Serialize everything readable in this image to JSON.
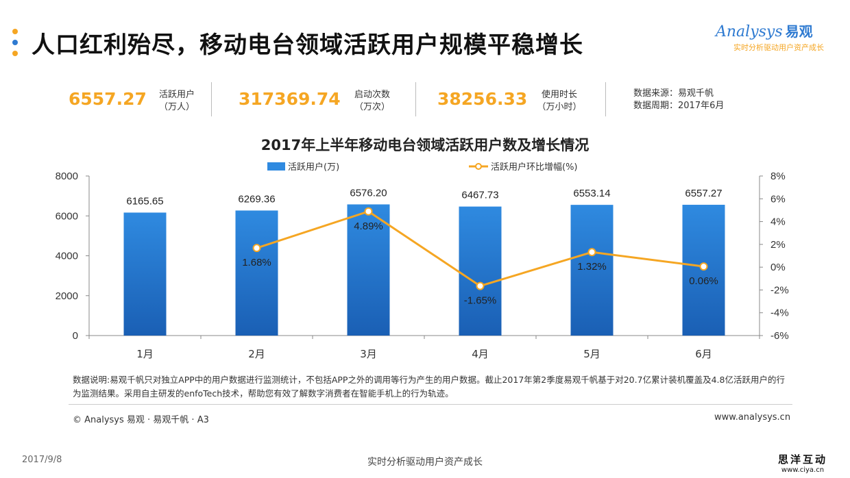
{
  "title": "人口红利殆尽，移动电台领域活跃用户规模平稳增长",
  "logo": {
    "brand": "nalysys",
    "brand_cn": "易观",
    "tagline": "实时分析驱动用户资产成长"
  },
  "kpis": [
    {
      "value": "6557.27",
      "label_line1": "活跃用户",
      "label_line2": "（万人）"
    },
    {
      "value": "317369.74",
      "label_line1": "启动次数",
      "label_line2": "（万次）"
    },
    {
      "value": "38256.33",
      "label_line1": "使用时长",
      "label_line2": "（万小时）"
    }
  ],
  "source": {
    "line1": "数据来源：易观千帆",
    "line2": "数据周期：2017年6月"
  },
  "chart_data": {
    "type": "bar",
    "title": "2017年上半年移动电台领域活跃用户数及增长情况",
    "categories": [
      "1月",
      "2月",
      "3月",
      "4月",
      "5月",
      "6月"
    ],
    "series": [
      {
        "name": "活跃用户(万)",
        "type": "bar",
        "axis": "left",
        "values": [
          6165.65,
          6269.36,
          6576.2,
          6467.73,
          6553.14,
          6557.27
        ],
        "labels": [
          "6165.65",
          "6269.36",
          "6576.20",
          "6467.73",
          "6553.14",
          "6557.27"
        ]
      },
      {
        "name": "活跃用户环比增幅(%)",
        "type": "line",
        "axis": "right",
        "values": [
          null,
          1.68,
          4.89,
          -1.65,
          1.32,
          0.06
        ],
        "labels": [
          "",
          "1.68%",
          "4.89%",
          "-1.65%",
          "1.32%",
          "0.06%"
        ]
      }
    ],
    "left_axis": {
      "ylim": [
        0,
        8000
      ],
      "ticks": [
        "0",
        "2000",
        "4000",
        "6000",
        "8000"
      ]
    },
    "right_axis": {
      "ylim": [
        -6,
        8
      ],
      "ticks": [
        "-6%",
        "-4%",
        "-2%",
        "0%",
        "2%",
        "4%",
        "6%",
        "8%"
      ]
    },
    "legend_position": "top",
    "grid": false,
    "colors": {
      "bar_top": "#2f8ae0",
      "bar_bottom": "#1a5fb4",
      "line": "#f5a623"
    }
  },
  "note": "数据说明:易观千帆只对独立APP中的用户数据进行监测统计，不包括APP之外的调用等行为产生的用户数据。截止2017年第2季度易观千帆基于对20.7亿累计装机覆盖及4.8亿活跃用户的行为监测结果。采用自主研发的enfoTech技术，帮助您有效了解数字消费者在智能手机上的行为轨迹。",
  "footer": {
    "copyright": "© Analysys 易观 · 易观千帆 · A3",
    "website": "www.analysys.cn",
    "date": "2017/9/8",
    "slogan": "实时分析驱动用户资产成长",
    "stamp_cn": "思洋互动",
    "stamp_url": "www.ciya.cn"
  }
}
